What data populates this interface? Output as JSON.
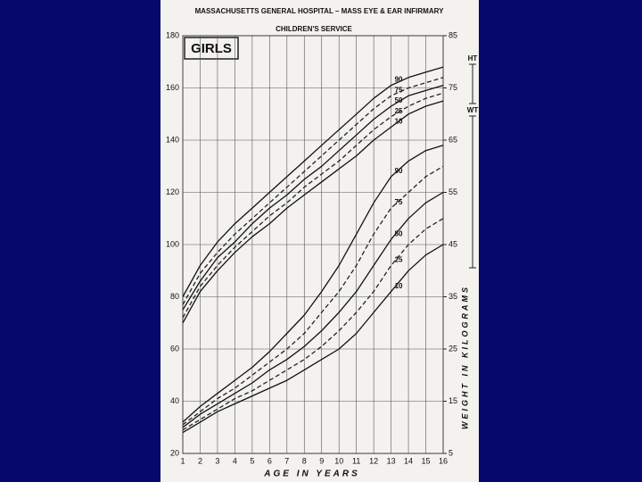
{
  "chart_data": {
    "type": "line",
    "title": "MASSACHUSETTS GENERAL HOSPITAL – MASS EYE & EAR INFIRMARY",
    "subtitle": "CHILDREN'S SERVICE",
    "panel_label": "GIRLS",
    "side_labels": [
      "HT",
      "WT"
    ],
    "x_label": "AGE IN YEARS",
    "y2_label": "WEIGHT IN KILOGRAMS",
    "x": [
      1,
      2,
      3,
      4,
      5,
      6,
      7,
      8,
      9,
      10,
      11,
      12,
      13,
      14,
      15,
      16
    ],
    "xlim": [
      1,
      16
    ],
    "xticks": [
      1,
      2,
      3,
      4,
      5,
      6,
      7,
      8,
      9,
      10,
      11,
      12,
      13,
      14,
      15,
      16
    ],
    "ylim": [
      20,
      180
    ],
    "yticks": [
      20,
      40,
      60,
      80,
      100,
      120,
      140,
      160,
      180
    ],
    "y2lim": [
      5,
      85
    ],
    "y2ticks": [
      5,
      15,
      25,
      35,
      45,
      55,
      65,
      75,
      85
    ],
    "grid": true,
    "series": [
      {
        "name": "90",
        "color": "#111111",
        "style": "solid",
        "values": [
          80,
          92,
          101,
          108,
          114,
          120,
          126,
          132,
          138,
          144,
          150,
          156,
          161,
          164,
          166,
          168
        ]
      },
      {
        "name": "75",
        "color": "#222222",
        "style": "dashed",
        "values": [
          77,
          89,
          97,
          104,
          110,
          116,
          122,
          128,
          134,
          140,
          146,
          152,
          157,
          160,
          162,
          164
        ]
      },
      {
        "name": "50",
        "color": "#111111",
        "style": "solid",
        "values": [
          75,
          86,
          95,
          101,
          108,
          114,
          119,
          125,
          130,
          136,
          142,
          148,
          153,
          157,
          159,
          161
        ]
      },
      {
        "name": "25",
        "color": "#222222",
        "style": "dashed",
        "values": [
          72,
          84,
          92,
          99,
          105,
          111,
          116,
          122,
          127,
          132,
          138,
          144,
          149,
          153,
          156,
          158
        ]
      },
      {
        "name": "10",
        "color": "#111111",
        "style": "solid",
        "values": [
          70,
          82,
          90,
          97,
          103,
          108,
          114,
          119,
          124,
          129,
          134,
          140,
          145,
          150,
          153,
          155
        ]
      },
      {
        "name": "90",
        "color": "#111111",
        "style": "solid",
        "axis": "y2",
        "values": [
          11,
          14,
          16.5,
          19,
          21.5,
          24.5,
          28,
          31.5,
          36,
          41,
          47,
          53,
          58,
          61,
          63,
          64
        ]
      },
      {
        "name": "75",
        "color": "#222222",
        "style": "dashed",
        "axis": "y2",
        "values": [
          10.5,
          13,
          15.5,
          17.5,
          20,
          22.5,
          25,
          28,
          32,
          36,
          41,
          47,
          52,
          55,
          58,
          60
        ]
      },
      {
        "name": "50",
        "color": "#111111",
        "style": "solid",
        "axis": "y2",
        "values": [
          10,
          12.5,
          14.5,
          16.5,
          18.5,
          21,
          23,
          25.5,
          28.5,
          32,
          36,
          41,
          46,
          50,
          53,
          55
        ]
      },
      {
        "name": "25",
        "color": "#222222",
        "style": "dashed",
        "axis": "y2",
        "values": [
          9.5,
          11.5,
          13.5,
          15.5,
          17,
          19,
          21,
          23,
          25.5,
          28.5,
          32,
          36,
          41,
          45,
          48,
          50
        ]
      },
      {
        "name": "10",
        "color": "#111111",
        "style": "solid",
        "axis": "y2",
        "values": [
          9,
          11,
          13,
          14.5,
          16,
          17.5,
          19,
          21,
          23,
          25,
          28,
          32,
          36,
          40,
          43,
          45
        ]
      }
    ]
  }
}
